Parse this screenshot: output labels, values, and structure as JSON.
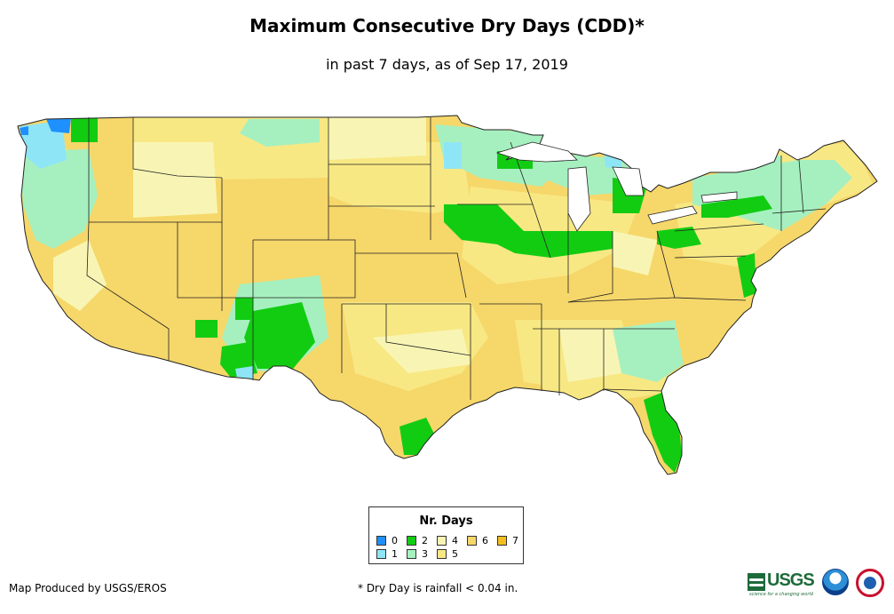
{
  "title": "Maximum Consecutive Dry Days (CDD)*",
  "subtitle": "in past 7 days, as of Sep 17, 2019",
  "legend": {
    "title": "Nr. Days",
    "items": [
      {
        "label": "0",
        "color": "#1e90ff"
      },
      {
        "label": "1",
        "color": "#8ee5f5"
      },
      {
        "label": "2",
        "color": "#12cc12"
      },
      {
        "label": "3",
        "color": "#a6f0c0"
      },
      {
        "label": "4",
        "color": "#f8f5b4"
      },
      {
        "label": "5",
        "color": "#f8e884"
      },
      {
        "label": "6",
        "color": "#f6d76a"
      },
      {
        "label": "7",
        "color": "#f2bf1e"
      }
    ]
  },
  "credit": "Map Produced by USGS/EROS",
  "footnote": "* Dry Day is rainfall < 0.04 in.",
  "logos": {
    "usgs_text": "USGS",
    "usgs_tagline": "science for a changing world"
  }
}
